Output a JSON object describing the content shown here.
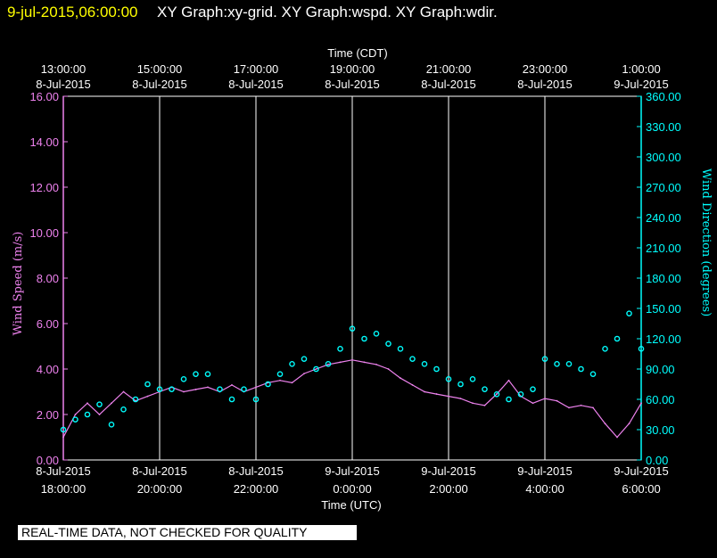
{
  "header": {
    "date": "9-jul-2015,06:00:00",
    "graphs": "XY Graph:xy-grid.  XY Graph:wspd.  XY Graph:wdir."
  },
  "disclaimer": "REAL-TIME DATA, NOT CHECKED FOR QUALITY",
  "colors": {
    "background": "#000000",
    "speed": "#ee82ee",
    "direction": "#00ffff",
    "grid": "#ffffff",
    "title_date": "#ffff00"
  },
  "chart_data": {
    "type": "line",
    "title": "",
    "top_axis": {
      "label": "Time (CDT)",
      "ticks": [
        {
          "time": "13:00:00",
          "date": "8-Jul-2015"
        },
        {
          "time": "15:00:00",
          "date": "8-Jul-2015"
        },
        {
          "time": "17:00:00",
          "date": "8-Jul-2015"
        },
        {
          "time": "19:00:00",
          "date": "8-Jul-2015"
        },
        {
          "time": "21:00:00",
          "date": "8-Jul-2015"
        },
        {
          "time": "23:00:00",
          "date": "8-Jul-2015"
        },
        {
          "time": "1:00:00",
          "date": "9-Jul-2015"
        }
      ]
    },
    "bottom_axis": {
      "label": "Time (UTC)",
      "ticks": [
        {
          "date": "8-Jul-2015",
          "time": "18:00:00"
        },
        {
          "date": "8-Jul-2015",
          "time": "20:00:00"
        },
        {
          "date": "8-Jul-2015",
          "time": "22:00:00"
        },
        {
          "date": "9-Jul-2015",
          "time": "0:00:00"
        },
        {
          "date": "9-Jul-2015",
          "time": "2:00:00"
        },
        {
          "date": "9-Jul-2015",
          "time": "4:00:00"
        },
        {
          "date": "9-Jul-2015",
          "time": "6:00:00"
        }
      ],
      "x_hours_utc": [
        18,
        20,
        22,
        24,
        26,
        28,
        30
      ],
      "xlim_hours_utc": [
        18,
        30
      ]
    },
    "left_axis": {
      "label": "Wind Speed (m/s)",
      "ylim": [
        0,
        16
      ],
      "ticks": [
        "0.00",
        "2.00",
        "4.00",
        "6.00",
        "8.00",
        "10.00",
        "12.00",
        "14.00",
        "16.00"
      ]
    },
    "right_axis": {
      "label": "Wind Direction (degrees)",
      "ylim": [
        0,
        360
      ],
      "ticks": [
        "0.00",
        "30.00",
        "60.00",
        "90.00",
        "120.00",
        "150.00",
        "180.00",
        "210.00",
        "240.00",
        "270.00",
        "300.00",
        "330.00",
        "360.00"
      ]
    },
    "grid": "vertical lines only",
    "series": [
      {
        "type": "line",
        "color": "#ee82ee",
        "axis": "left",
        "x_hours_utc": [
          18.0,
          18.25,
          18.5,
          18.75,
          19.0,
          19.25,
          19.5,
          19.75,
          20.0,
          20.25,
          20.5,
          20.75,
          21.0,
          21.25,
          21.5,
          21.75,
          22.0,
          22.25,
          22.5,
          22.75,
          23.0,
          23.25,
          23.5,
          23.75,
          24.0,
          24.25,
          24.5,
          24.75,
          25.0,
          25.25,
          25.5,
          25.75,
          26.0,
          26.25,
          26.5,
          26.75,
          27.0,
          27.25,
          27.5,
          27.75,
          28.0,
          28.25,
          28.5,
          28.75,
          29.0,
          29.25,
          29.5,
          29.75,
          30.0
        ],
        "values": [
          1.0,
          2.0,
          2.5,
          2.0,
          2.5,
          3.0,
          2.6,
          2.8,
          3.0,
          3.2,
          3.0,
          3.1,
          3.2,
          3.0,
          3.3,
          3.0,
          3.2,
          3.4,
          3.5,
          3.4,
          3.8,
          4.0,
          4.2,
          4.3,
          4.4,
          4.3,
          4.2,
          4.0,
          3.6,
          3.3,
          3.0,
          2.9,
          2.8,
          2.7,
          2.5,
          2.4,
          2.9,
          3.5,
          2.8,
          2.5,
          2.7,
          2.6,
          2.3,
          2.4,
          2.3,
          1.6,
          1.0,
          1.6,
          2.5
        ]
      },
      {
        "type": "scatter",
        "color": "#00ffff",
        "axis": "right",
        "x_hours_utc": [
          18.0,
          18.25,
          18.5,
          18.75,
          19.0,
          19.25,
          19.5,
          19.75,
          20.0,
          20.25,
          20.5,
          20.75,
          21.0,
          21.25,
          21.5,
          21.75,
          22.0,
          22.25,
          22.5,
          22.75,
          23.0,
          23.25,
          23.5,
          23.75,
          24.0,
          24.25,
          24.5,
          24.75,
          25.0,
          25.25,
          25.5,
          25.75,
          26.0,
          26.25,
          26.5,
          26.75,
          27.0,
          27.25,
          27.5,
          27.75,
          28.0,
          28.25,
          28.5,
          28.75,
          29.0,
          29.25,
          29.5,
          29.75,
          30.0
        ],
        "values": [
          30,
          40,
          45,
          55,
          35,
          50,
          60,
          75,
          70,
          70,
          80,
          85,
          85,
          70,
          60,
          70,
          60,
          75,
          85,
          95,
          100,
          90,
          95,
          110,
          130,
          120,
          125,
          115,
          110,
          100,
          95,
          90,
          80,
          75,
          80,
          70,
          65,
          60,
          65,
          70,
          100,
          95,
          95,
          90,
          85,
          110,
          120,
          145,
          110
        ]
      }
    ]
  }
}
